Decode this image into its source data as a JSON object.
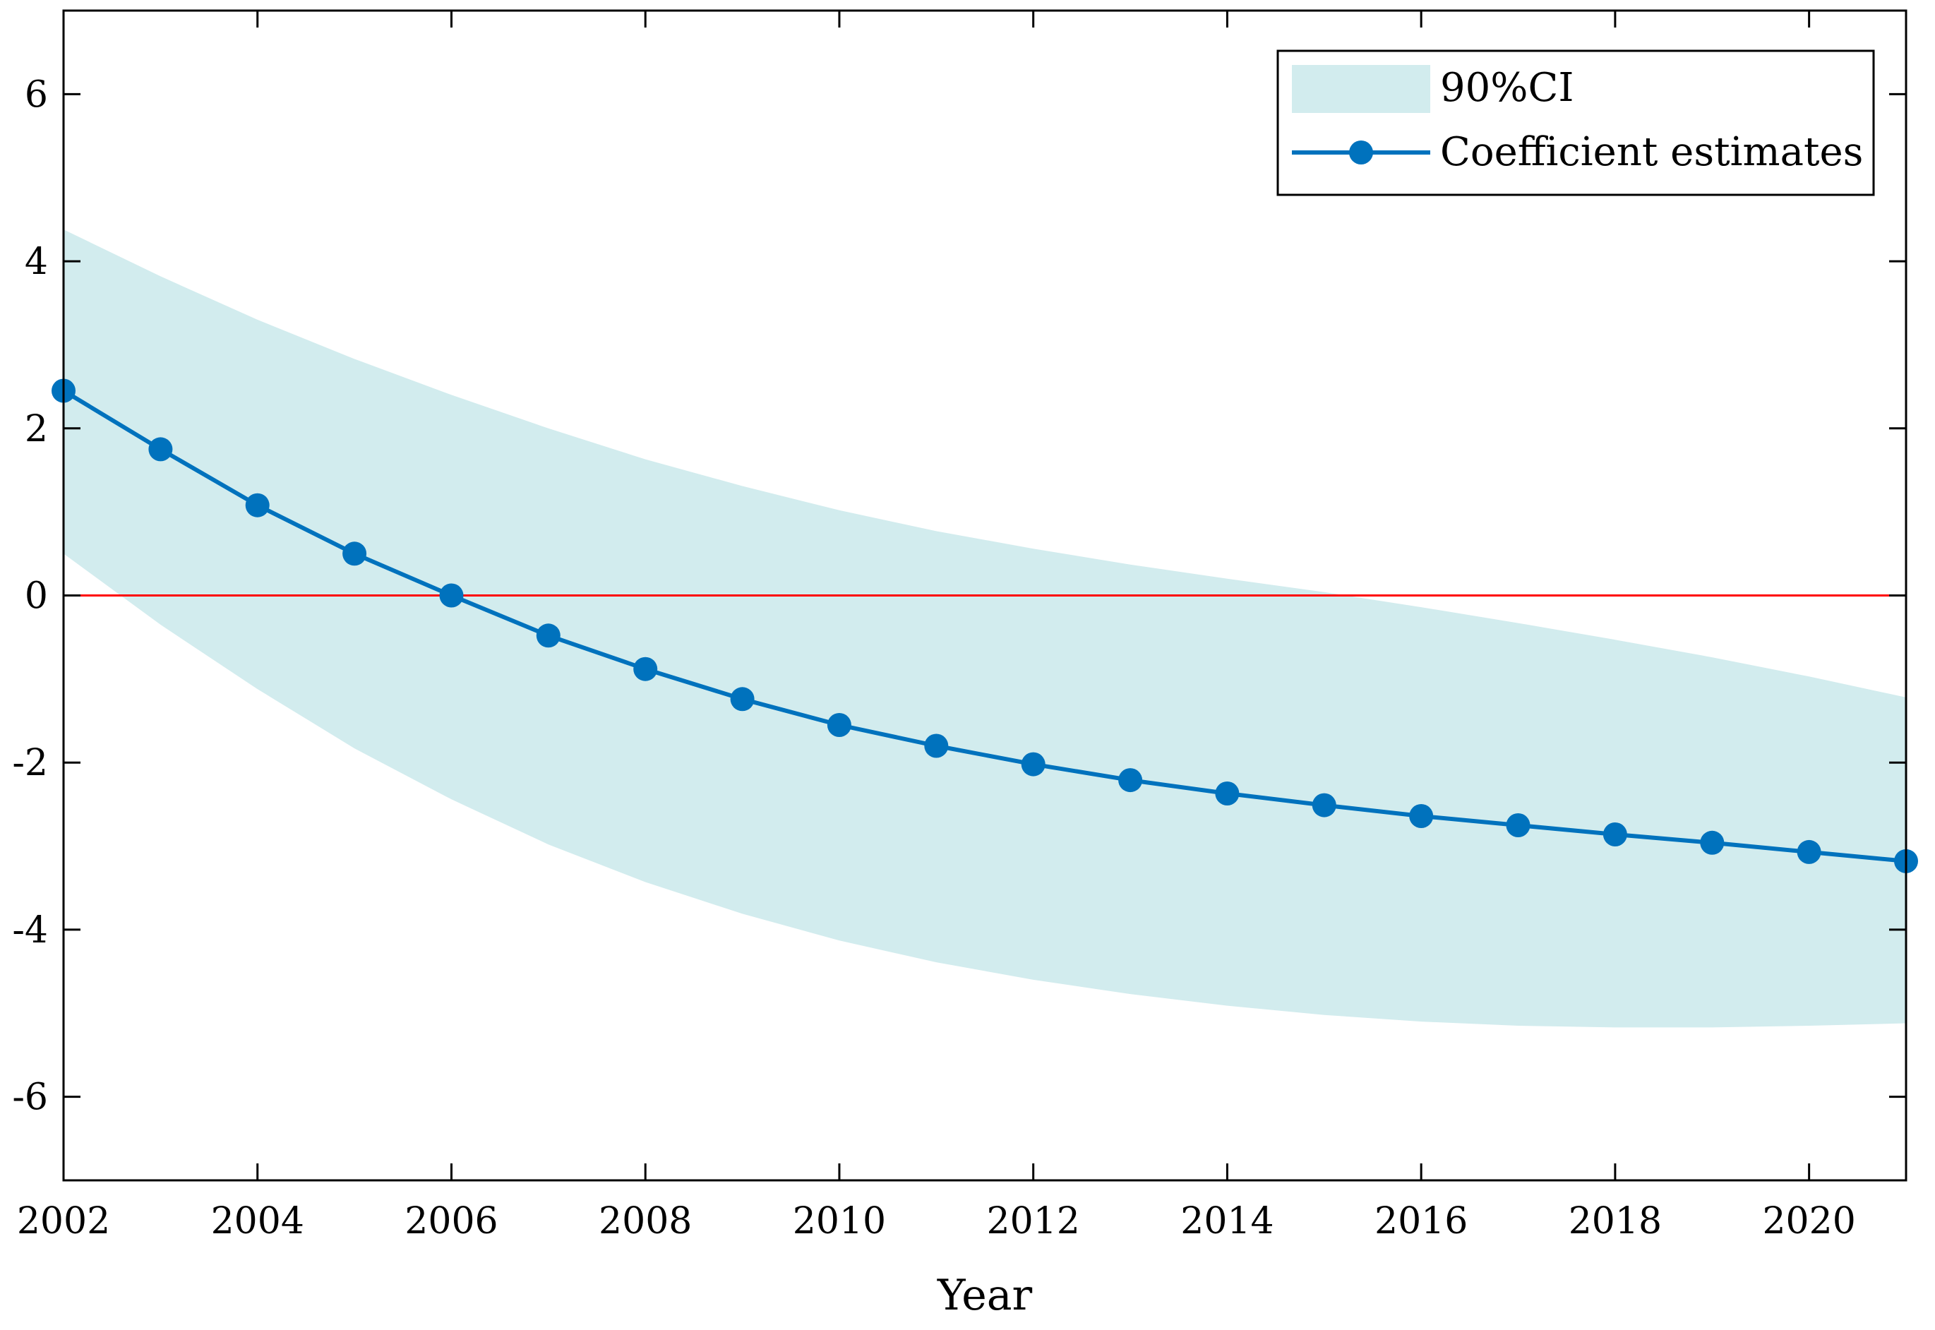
{
  "chart_data": {
    "type": "line",
    "title": "",
    "xlabel": "Year",
    "ylabel": "",
    "xlim": [
      2002,
      2021
    ],
    "ylim": [
      -7,
      7
    ],
    "xticks": [
      2002,
      2004,
      2006,
      2008,
      2010,
      2012,
      2014,
      2016,
      2018,
      2020
    ],
    "xtick_labels": [
      "2002",
      "2004",
      "2006",
      "2008",
      "2010",
      "2012",
      "2014",
      "2016",
      "2018",
      "2020"
    ],
    "yticks": [
      -6,
      -4,
      -2,
      0,
      2,
      4,
      6
    ],
    "ytick_labels": [
      "-6",
      "-4",
      "-2",
      "0",
      "2",
      "4",
      "6"
    ],
    "grid": false,
    "legend_position": "top-right",
    "x": [
      2002,
      2003,
      2004,
      2005,
      2006,
      2007,
      2008,
      2009,
      2010,
      2011,
      2012,
      2013,
      2014,
      2015,
      2016,
      2017,
      2018,
      2019,
      2020,
      2021
    ],
    "series": [
      {
        "name": "Coefficient estimates",
        "kind": "line-marker",
        "color": "#0072BD",
        "values": [
          2.45,
          1.75,
          1.08,
          0.5,
          0.0,
          -0.48,
          -0.88,
          -1.24,
          -1.55,
          -1.8,
          -2.02,
          -2.21,
          -2.37,
          -2.51,
          -2.64,
          -2.75,
          -2.86,
          -2.96,
          -3.07,
          -3.18
        ]
      },
      {
        "name": "90%CI",
        "kind": "band",
        "color": "#D2ECEE",
        "upper": [
          4.38,
          3.82,
          3.3,
          2.83,
          2.4,
          2.0,
          1.63,
          1.31,
          1.02,
          0.77,
          0.56,
          0.37,
          0.2,
          0.04,
          -0.14,
          -0.33,
          -0.53,
          -0.74,
          -0.97,
          -1.22
        ],
        "lower": [
          0.5,
          -0.35,
          -1.12,
          -1.83,
          -2.44,
          -2.98,
          -3.43,
          -3.81,
          -4.13,
          -4.39,
          -4.6,
          -4.77,
          -4.91,
          -5.02,
          -5.1,
          -5.15,
          -5.17,
          -5.17,
          -5.15,
          -5.12
        ]
      }
    ],
    "reference_line": {
      "y": 0,
      "color": "#FF0000"
    }
  },
  "legend": {
    "items": [
      {
        "label": "90%CI",
        "color": "#D2ECEE"
      },
      {
        "label": "Coefficient estimates",
        "color": "#0072BD"
      }
    ]
  }
}
